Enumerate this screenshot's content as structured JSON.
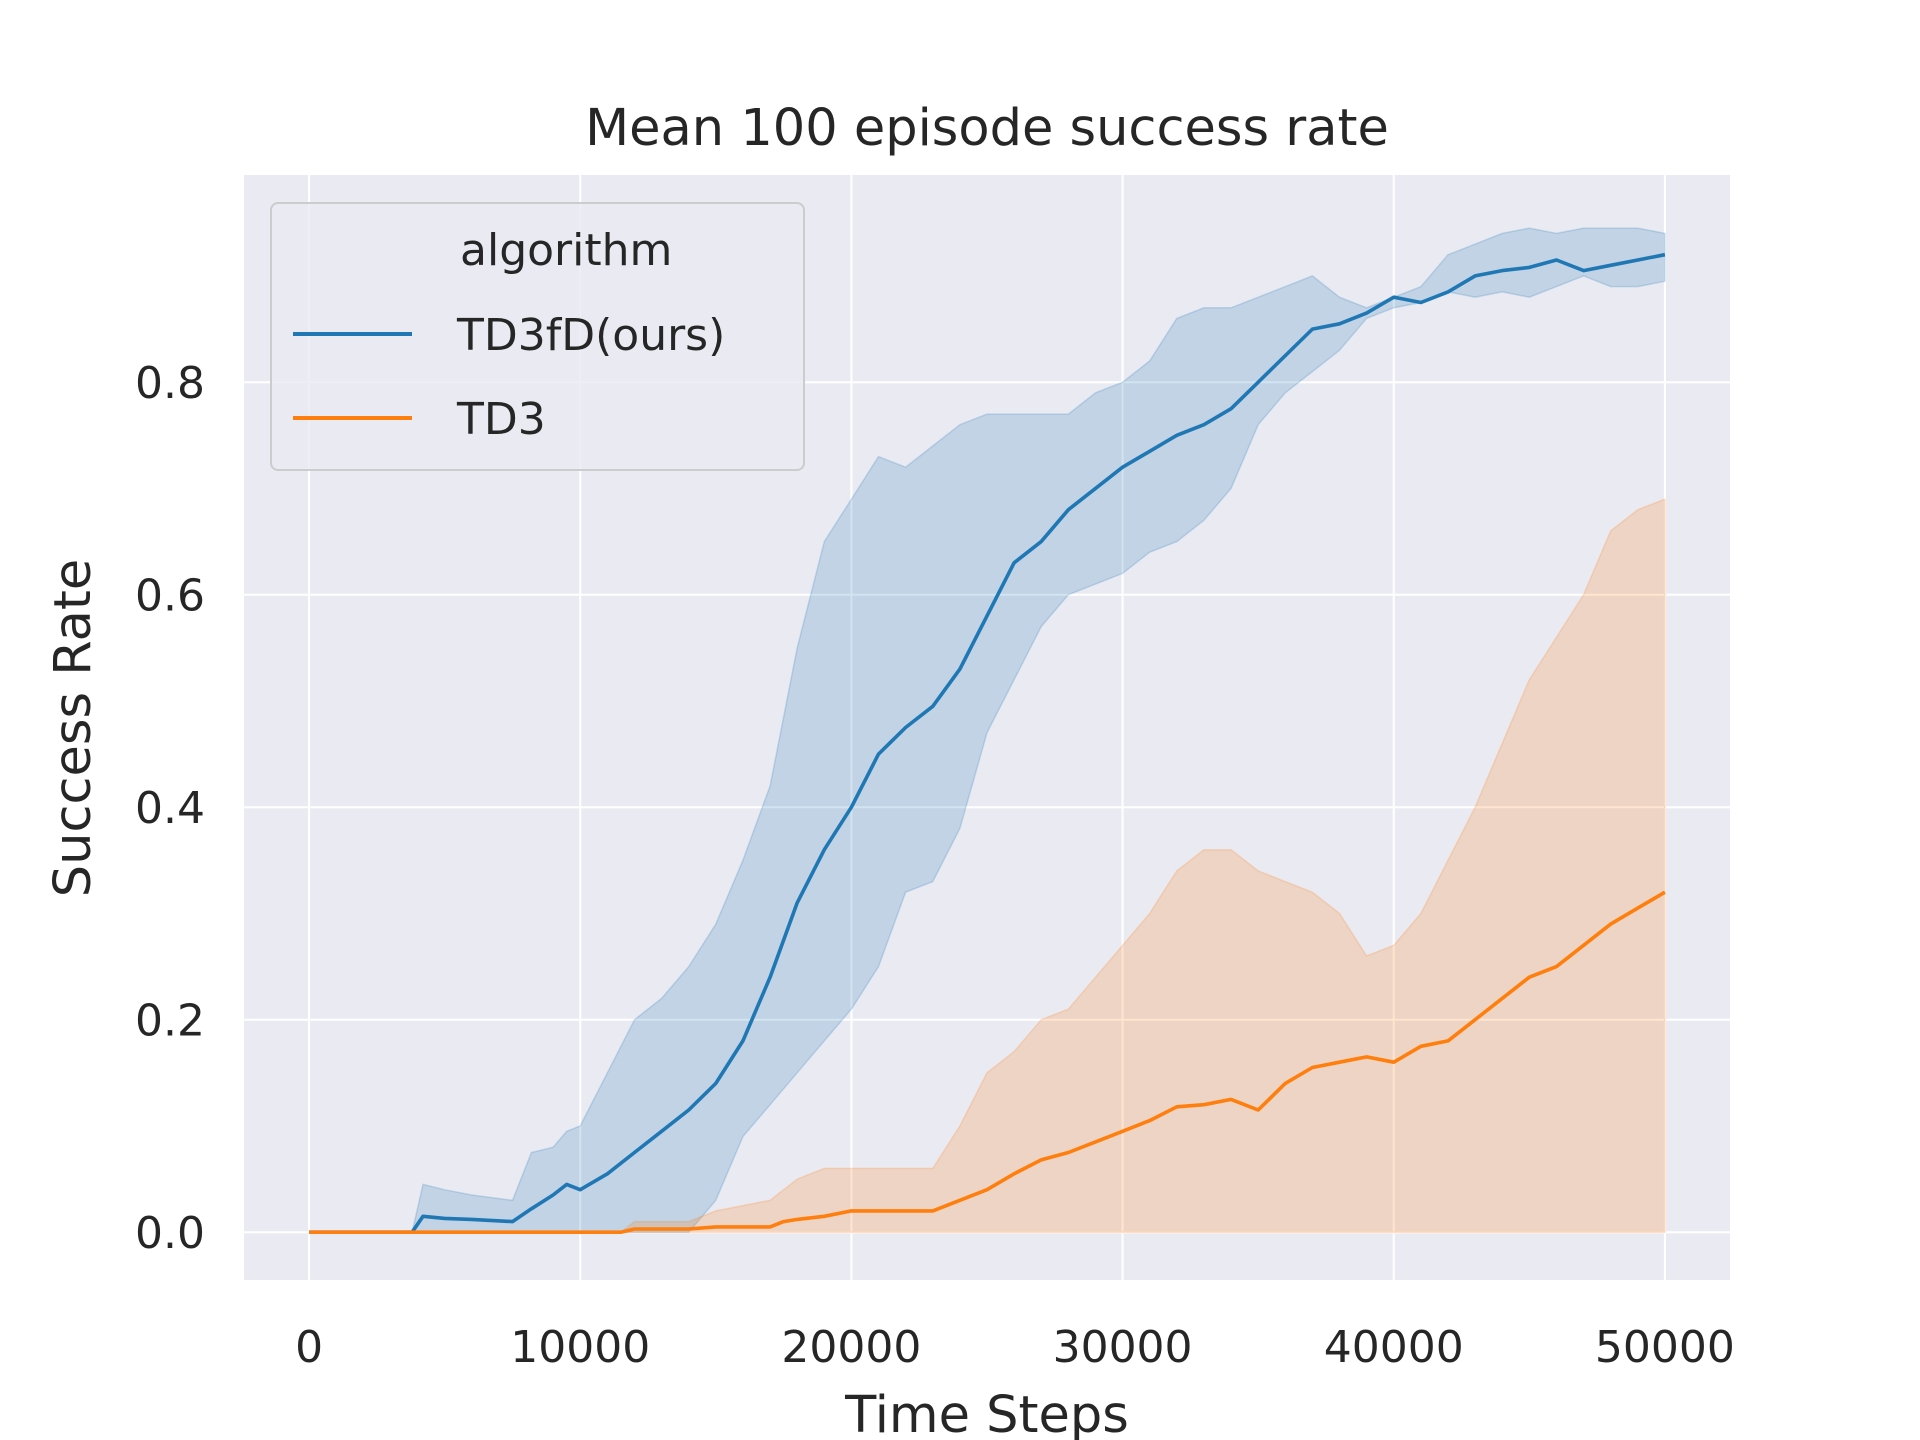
{
  "chart_data": {
    "type": "line",
    "title": "Mean 100 episode success rate",
    "xlabel": "Time Steps",
    "ylabel": "Success Rate",
    "xlim": [
      -2400,
      52400
    ],
    "ylim": [
      -0.045,
      0.995
    ],
    "xticks": [
      0,
      10000,
      20000,
      30000,
      40000,
      50000
    ],
    "xtick_labels": [
      "0",
      "10000",
      "20000",
      "30000",
      "40000",
      "50000"
    ],
    "yticks": [
      0.0,
      0.2,
      0.4,
      0.6,
      0.8
    ],
    "ytick_labels": [
      "0.0",
      "0.2",
      "0.4",
      "0.6",
      "0.8"
    ],
    "grid": true,
    "legend": {
      "title": "algorithm",
      "position": "top-left",
      "entries": [
        "TD3fD(ours)",
        "TD3"
      ]
    },
    "series": [
      {
        "name": "TD3fD(ours)",
        "color": "#1f77b4",
        "x": [
          0,
          3800,
          4200,
          5000,
          6000,
          7500,
          8200,
          9000,
          9500,
          10000,
          11000,
          12000,
          13000,
          14000,
          15000,
          16000,
          17000,
          18000,
          19000,
          20000,
          21000,
          22000,
          23000,
          24000,
          25000,
          26000,
          27000,
          28000,
          29000,
          30000,
          31000,
          32000,
          33000,
          34000,
          35000,
          36000,
          37000,
          38000,
          39000,
          40000,
          41000,
          42000,
          43000,
          44000,
          45000,
          46000,
          47000,
          48000,
          49000,
          50000
        ],
        "mean": [
          0,
          0,
          0.015,
          0.013,
          0.012,
          0.01,
          0.022,
          0.035,
          0.045,
          0.04,
          0.055,
          0.075,
          0.095,
          0.115,
          0.14,
          0.18,
          0.24,
          0.31,
          0.36,
          0.4,
          0.45,
          0.475,
          0.495,
          0.53,
          0.58,
          0.63,
          0.65,
          0.68,
          0.7,
          0.72,
          0.735,
          0.75,
          0.76,
          0.775,
          0.8,
          0.825,
          0.85,
          0.855,
          0.865,
          0.88,
          0.875,
          0.885,
          0.9,
          0.905,
          0.908,
          0.915,
          0.905,
          0.91,
          0.915,
          0.92
        ],
        "lower": [
          0,
          0,
          0,
          0,
          0,
          0,
          0,
          0,
          0,
          0,
          0,
          0,
          0,
          0,
          0.03,
          0.09,
          0.12,
          0.15,
          0.18,
          0.21,
          0.25,
          0.32,
          0.33,
          0.38,
          0.47,
          0.52,
          0.57,
          0.6,
          0.61,
          0.62,
          0.64,
          0.65,
          0.67,
          0.7,
          0.76,
          0.79,
          0.81,
          0.83,
          0.86,
          0.87,
          0.875,
          0.885,
          0.88,
          0.885,
          0.88,
          0.89,
          0.9,
          0.89,
          0.89,
          0.895
        ],
        "upper": [
          0,
          0,
          0.045,
          0.04,
          0.035,
          0.03,
          0.075,
          0.08,
          0.095,
          0.1,
          0.15,
          0.2,
          0.22,
          0.25,
          0.29,
          0.35,
          0.42,
          0.55,
          0.65,
          0.69,
          0.73,
          0.72,
          0.74,
          0.76,
          0.77,
          0.77,
          0.77,
          0.77,
          0.79,
          0.8,
          0.82,
          0.86,
          0.87,
          0.87,
          0.88,
          0.89,
          0.9,
          0.88,
          0.87,
          0.88,
          0.89,
          0.92,
          0.93,
          0.94,
          0.945,
          0.94,
          0.945,
          0.945,
          0.945,
          0.94
        ]
      },
      {
        "name": "TD3",
        "color": "#ff7f0e",
        "x": [
          0,
          11500,
          12000,
          14000,
          15000,
          17000,
          17500,
          18000,
          19000,
          20000,
          21000,
          22000,
          23000,
          24000,
          25000,
          26000,
          27000,
          28000,
          29000,
          30000,
          31000,
          32000,
          33000,
          34000,
          35000,
          36000,
          37000,
          38000,
          39000,
          40000,
          41000,
          42000,
          43000,
          44000,
          45000,
          46000,
          47000,
          48000,
          49000,
          50000
        ],
        "mean": [
          0,
          0,
          0.003,
          0.003,
          0.005,
          0.005,
          0.01,
          0.012,
          0.015,
          0.02,
          0.02,
          0.02,
          0.02,
          0.03,
          0.04,
          0.055,
          0.068,
          0.075,
          0.085,
          0.095,
          0.105,
          0.118,
          0.12,
          0.125,
          0.115,
          0.14,
          0.155,
          0.16,
          0.165,
          0.16,
          0.175,
          0.18,
          0.2,
          0.22,
          0.24,
          0.25,
          0.27,
          0.29,
          0.305,
          0.32
        ],
        "lower": [
          0,
          0,
          0,
          0,
          0,
          0,
          0,
          0,
          0,
          0,
          0,
          0,
          0,
          0,
          0,
          0,
          0,
          0,
          0,
          0,
          0,
          0,
          0,
          0,
          0,
          0,
          0,
          0,
          0,
          0,
          0,
          0,
          0,
          0,
          0,
          0,
          0,
          0,
          0,
          0
        ],
        "upper": [
          0,
          0,
          0.01,
          0.01,
          0.02,
          0.03,
          0.04,
          0.05,
          0.06,
          0.06,
          0.06,
          0.06,
          0.06,
          0.1,
          0.15,
          0.17,
          0.2,
          0.21,
          0.24,
          0.27,
          0.3,
          0.34,
          0.36,
          0.36,
          0.34,
          0.33,
          0.32,
          0.3,
          0.26,
          0.27,
          0.3,
          0.35,
          0.4,
          0.46,
          0.52,
          0.56,
          0.6,
          0.66,
          0.68,
          0.69
        ]
      }
    ]
  }
}
